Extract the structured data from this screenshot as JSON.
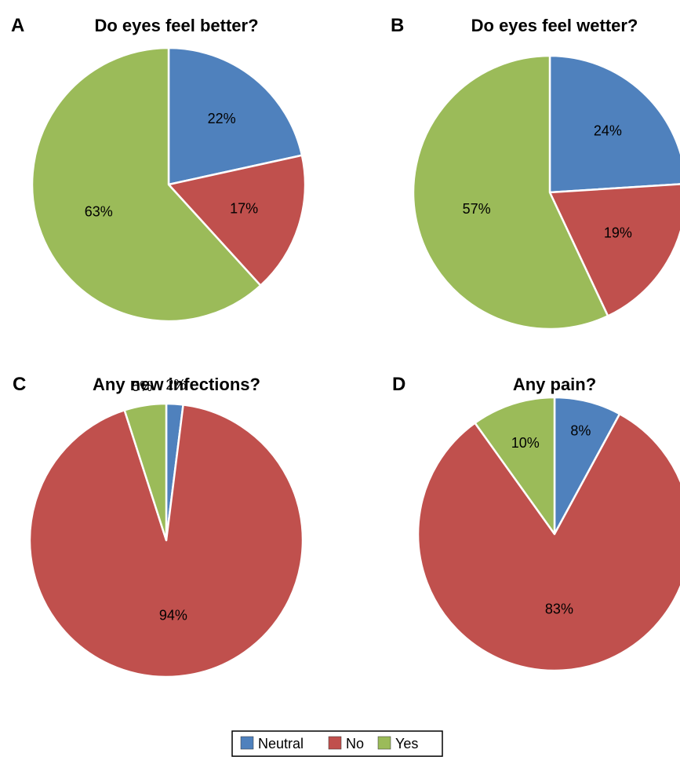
{
  "colors": {
    "Neutral": "#4f81bd",
    "No": "#c0504d",
    "Yes": "#9bbb59",
    "edge": "#ffffff"
  },
  "legend": {
    "items": [
      "Neutral",
      "No",
      "Yes"
    ]
  },
  "chart_data": [
    {
      "type": "pie",
      "panel": "A",
      "title": "Do eyes feel better?",
      "slices": [
        {
          "category": "Neutral",
          "value": 22,
          "label": "22%"
        },
        {
          "category": "No",
          "value": 17,
          "label": "17%"
        },
        {
          "category": "Yes",
          "value": 63,
          "label": "63%"
        }
      ]
    },
    {
      "type": "pie",
      "panel": "B",
      "title": "Do eyes feel wetter?",
      "slices": [
        {
          "category": "Neutral",
          "value": 24,
          "label": "24%"
        },
        {
          "category": "No",
          "value": 19,
          "label": "19%"
        },
        {
          "category": "Yes",
          "value": 57,
          "label": "57%"
        }
      ]
    },
    {
      "type": "pie",
      "panel": "C",
      "title": "Any new infections?",
      "slices": [
        {
          "category": "Neutral",
          "value": 2,
          "label": "2%"
        },
        {
          "category": "No",
          "value": 94,
          "label": "94%"
        },
        {
          "category": "Yes",
          "value": 5,
          "label": "5%"
        }
      ]
    },
    {
      "type": "pie",
      "panel": "D",
      "title": "Any pain?",
      "slices": [
        {
          "category": "Neutral",
          "value": 8,
          "label": "8%"
        },
        {
          "category": "No",
          "value": 83,
          "label": "83%"
        },
        {
          "category": "Yes",
          "value": 10,
          "label": "10%"
        }
      ]
    }
  ]
}
